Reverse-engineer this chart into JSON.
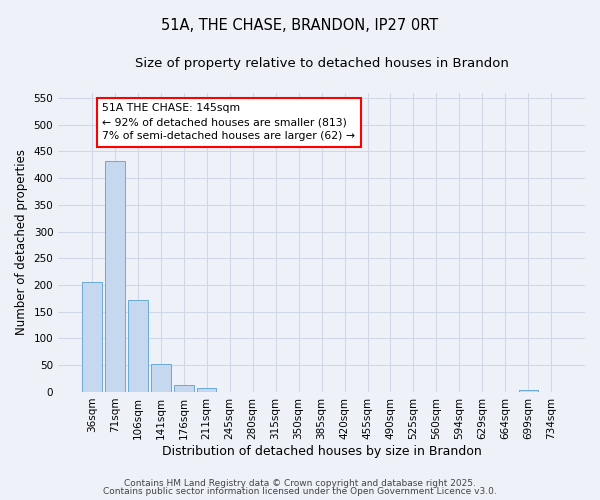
{
  "title": "51A, THE CHASE, BRANDON, IP27 0RT",
  "subtitle": "Size of property relative to detached houses in Brandon",
  "xlabel": "Distribution of detached houses by size in Brandon",
  "ylabel": "Number of detached properties",
  "categories": [
    "36sqm",
    "71sqm",
    "106sqm",
    "141sqm",
    "176sqm",
    "211sqm",
    "245sqm",
    "280sqm",
    "315sqm",
    "350sqm",
    "385sqm",
    "420sqm",
    "455sqm",
    "490sqm",
    "525sqm",
    "560sqm",
    "594sqm",
    "629sqm",
    "664sqm",
    "699sqm",
    "734sqm"
  ],
  "values": [
    205,
    432,
    172,
    53,
    13,
    8,
    0,
    0,
    0,
    0,
    0,
    0,
    0,
    0,
    0,
    0,
    0,
    0,
    0,
    3,
    0
  ],
  "bar_color": "#c5d8ef",
  "bar_edge_color": "#6aaad4",
  "ylim": [
    0,
    560
  ],
  "yticks": [
    0,
    50,
    100,
    150,
    200,
    250,
    300,
    350,
    400,
    450,
    500,
    550
  ],
  "annotation_text": "51A THE CHASE: 145sqm\n← 92% of detached houses are smaller (813)\n7% of semi-detached houses are larger (62) →",
  "bg_color": "#eef2f8",
  "grid_color": "#d0d8e8",
  "footer1": "Contains HM Land Registry data © Crown copyright and database right 2025.",
  "footer2": "Contains public sector information licensed under the Open Government Licence v3.0.",
  "title_fontsize": 10.5,
  "subtitle_fontsize": 9.5,
  "tick_fontsize": 7.5,
  "xlabel_fontsize": 9,
  "ylabel_fontsize": 8.5,
  "footer_fontsize": 6.5
}
